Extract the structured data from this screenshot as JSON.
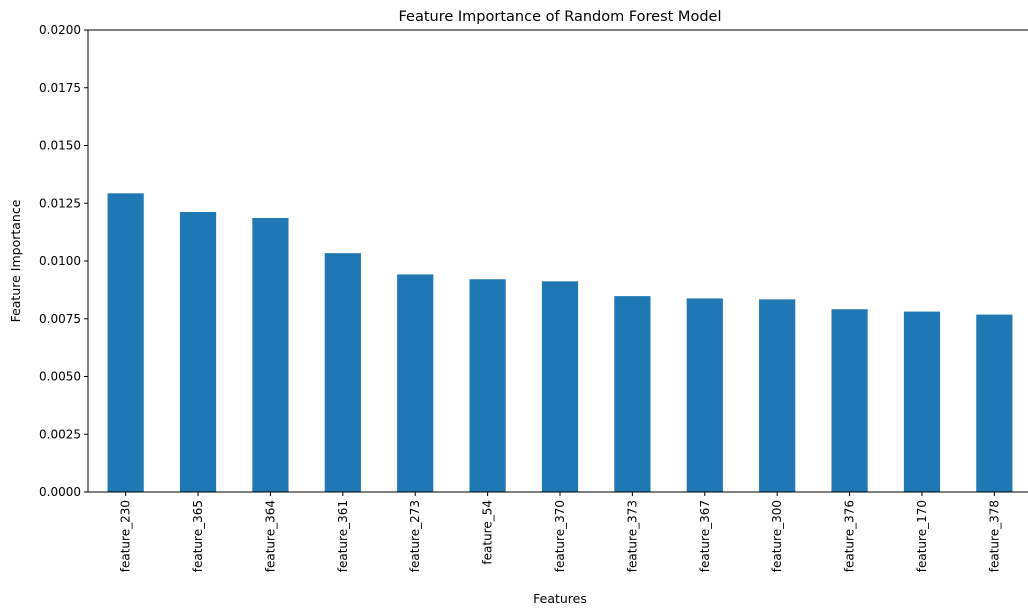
{
  "chart_data": {
    "type": "bar",
    "title": "Feature Importance of Random Forest Model",
    "xlabel": "Features",
    "ylabel": "Feature Importance",
    "categories": [
      "feature_230",
      "feature_365",
      "feature_364",
      "feature_361",
      "feature_273",
      "feature_54",
      "feature_370",
      "feature_373",
      "feature_367",
      "feature_300",
      "feature_376",
      "feature_170",
      "feature_378"
    ],
    "values": [
      0.01293,
      0.01212,
      0.01186,
      0.01034,
      0.00942,
      0.00921,
      0.00912,
      0.00848,
      0.00838,
      0.00834,
      0.00791,
      0.00781,
      0.00768
    ],
    "ylim": [
      0,
      0.02
    ],
    "yticks": [
      "0.0000",
      "0.0025",
      "0.0050",
      "0.0075",
      "0.0100",
      "0.0125",
      "0.0150",
      "0.0175",
      "0.0200"
    ],
    "bar_color": "#1f77b4",
    "grid": false,
    "legend": "none"
  }
}
